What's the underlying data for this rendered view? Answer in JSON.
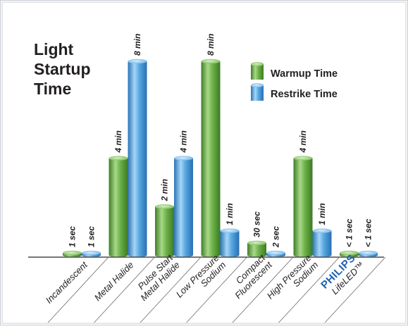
{
  "chart_data": {
    "type": "bar",
    "title_lines": [
      "Light",
      "Startup",
      "Time"
    ],
    "categories": [
      {
        "lines": [
          "Incandescent"
        ]
      },
      {
        "lines": [
          "Metal Halide"
        ]
      },
      {
        "lines": [
          "Pulse Start",
          "Metal Halide"
        ]
      },
      {
        "lines": [
          "Low Pressure",
          "Sodium"
        ]
      },
      {
        "lines": [
          "Compact",
          "Fluorescent"
        ]
      },
      {
        "lines": [
          "High Pressure",
          "Sodium"
        ]
      },
      {
        "lines": [
          "LifeLED™"
        ],
        "brand": "PHILIPS"
      }
    ],
    "series": [
      {
        "name": "Warmup Time",
        "color": "#5a9e3a",
        "values_minutes": [
          0.01,
          4,
          2,
          8,
          0.5,
          4,
          0.01
        ],
        "labels": [
          "1 sec",
          "4 min",
          "2 min",
          "8 min",
          "30 sec",
          "4 min",
          "< 1 sec"
        ]
      },
      {
        "name": "Restrike Time",
        "color": "#3d94d4",
        "values_minutes": [
          0.01,
          8,
          4,
          1,
          0.03,
          1,
          0.01
        ],
        "labels": [
          "1 sec",
          "8 min",
          "4 min",
          "1 min",
          "2 sec",
          "1 min",
          "< 1 sec"
        ]
      }
    ],
    "ylim": [
      0,
      8
    ],
    "xlabel": "",
    "ylabel": "",
    "legend_position": "top-right",
    "grid": false
  },
  "colors": {
    "background": "#ffffff",
    "frame": "#c8ccd2",
    "green": "#5a9e3a",
    "blue": "#3d94d4",
    "brand": "#1d63b4"
  }
}
